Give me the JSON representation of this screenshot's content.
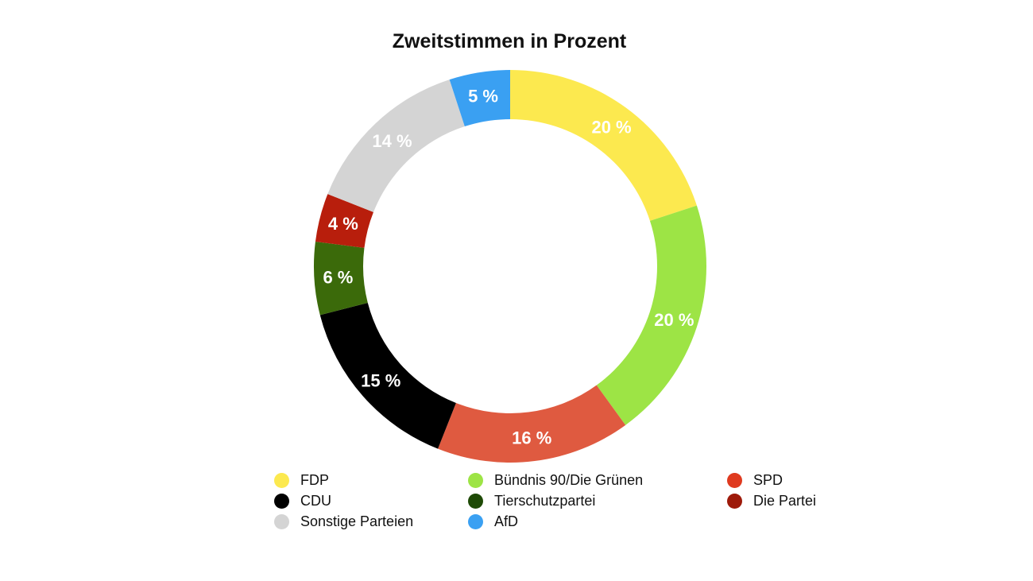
{
  "chart_data": {
    "type": "pie",
    "variant": "donut",
    "title": "Zweitstimmen in Prozent",
    "value_unit": "%",
    "slices": [
      {
        "name": "FDP",
        "value": 20,
        "label": "20 %",
        "color": "#fce94f"
      },
      {
        "name": "Bündnis 90/Die Grünen",
        "value": 20,
        "label": "20 %",
        "color": "#9de445"
      },
      {
        "name": "SPD",
        "value": 16,
        "label": "16 %",
        "color": "#df5a40"
      },
      {
        "name": "CDU",
        "value": 15,
        "label": "15 %",
        "color": "#000000"
      },
      {
        "name": "Tierschutzpartei",
        "value": 6,
        "label": "6 %",
        "color": "#3b6a0a"
      },
      {
        "name": "Die Partei",
        "value": 4,
        "label": "4 %",
        "color": "#b81e0c"
      },
      {
        "name": "Sonstige Parteien",
        "value": 14,
        "label": "14 %",
        "color": "#d4d4d4"
      },
      {
        "name": "AfD",
        "value": 5,
        "label": "5 %",
        "color": "#3aa0f2"
      }
    ],
    "legend": {
      "placement": "bottom",
      "items": [
        {
          "name": "FDP",
          "color": "#fce94f"
        },
        {
          "name": "Bündnis 90/Die Grünen",
          "color": "#9de445"
        },
        {
          "name": "SPD",
          "color": "#df3a1f"
        },
        {
          "name": "CDU",
          "color": "#000000"
        },
        {
          "name": "Tierschutzpartei",
          "color": "#1e4a06"
        },
        {
          "name": "Die Partei",
          "color": "#9e1a0a"
        },
        {
          "name": "Sonstige Parteien",
          "color": "#d4d4d4"
        },
        {
          "name": "AfD",
          "color": "#3aa0f2"
        }
      ]
    }
  }
}
